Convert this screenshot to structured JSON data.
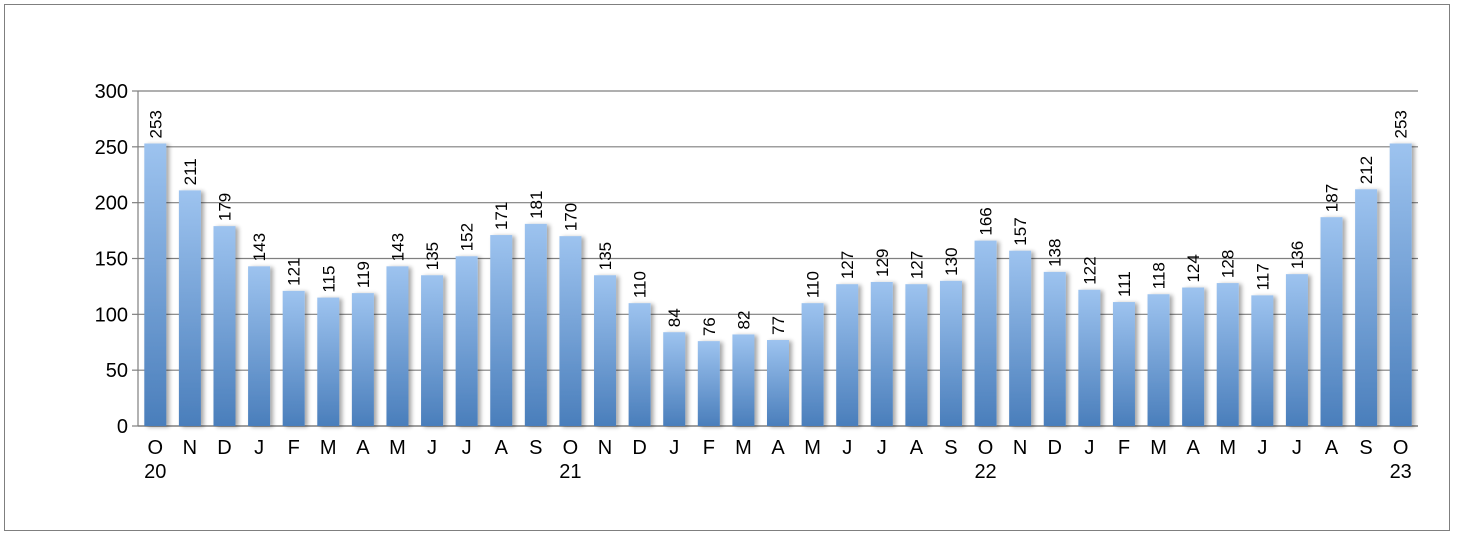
{
  "chart_data": {
    "type": "bar",
    "title": "",
    "xlabel": "",
    "ylabel": "",
    "ylim": [
      0,
      300
    ],
    "yticks": [
      0,
      50,
      100,
      150,
      200,
      250,
      300
    ],
    "grid": true,
    "legend": "none",
    "bar_color_top": "#9dc3ef",
    "bar_color_bottom": "#4a7ebb",
    "gridline_color": "#7f7f7f",
    "categories": [
      {
        "month": "O",
        "year": "20"
      },
      {
        "month": "N",
        "year": ""
      },
      {
        "month": "D",
        "year": ""
      },
      {
        "month": "J",
        "year": ""
      },
      {
        "month": "F",
        "year": ""
      },
      {
        "month": "M",
        "year": ""
      },
      {
        "month": "A",
        "year": ""
      },
      {
        "month": "M",
        "year": ""
      },
      {
        "month": "J",
        "year": ""
      },
      {
        "month": "J",
        "year": ""
      },
      {
        "month": "A",
        "year": ""
      },
      {
        "month": "S",
        "year": ""
      },
      {
        "month": "O",
        "year": "21"
      },
      {
        "month": "N",
        "year": ""
      },
      {
        "month": "D",
        "year": ""
      },
      {
        "month": "J",
        "year": ""
      },
      {
        "month": "F",
        "year": ""
      },
      {
        "month": "M",
        "year": ""
      },
      {
        "month": "A",
        "year": ""
      },
      {
        "month": "M",
        "year": ""
      },
      {
        "month": "J",
        "year": ""
      },
      {
        "month": "J",
        "year": ""
      },
      {
        "month": "A",
        "year": ""
      },
      {
        "month": "S",
        "year": ""
      },
      {
        "month": "O",
        "year": "22"
      },
      {
        "month": "N",
        "year": ""
      },
      {
        "month": "D",
        "year": ""
      },
      {
        "month": "J",
        "year": ""
      },
      {
        "month": "F",
        "year": ""
      },
      {
        "month": "M",
        "year": ""
      },
      {
        "month": "A",
        "year": ""
      },
      {
        "month": "M",
        "year": ""
      },
      {
        "month": "J",
        "year": ""
      },
      {
        "month": "J",
        "year": ""
      },
      {
        "month": "A",
        "year": ""
      },
      {
        "month": "S",
        "year": ""
      },
      {
        "month": "O",
        "year": "23"
      }
    ],
    "values": [
      253,
      211,
      179,
      143,
      121,
      115,
      119,
      143,
      135,
      152,
      171,
      181,
      170,
      135,
      110,
      84,
      76,
      82,
      77,
      110,
      127,
      129,
      127,
      130,
      166,
      157,
      138,
      122,
      111,
      118,
      124,
      128,
      117,
      136,
      187,
      212,
      253
    ]
  }
}
